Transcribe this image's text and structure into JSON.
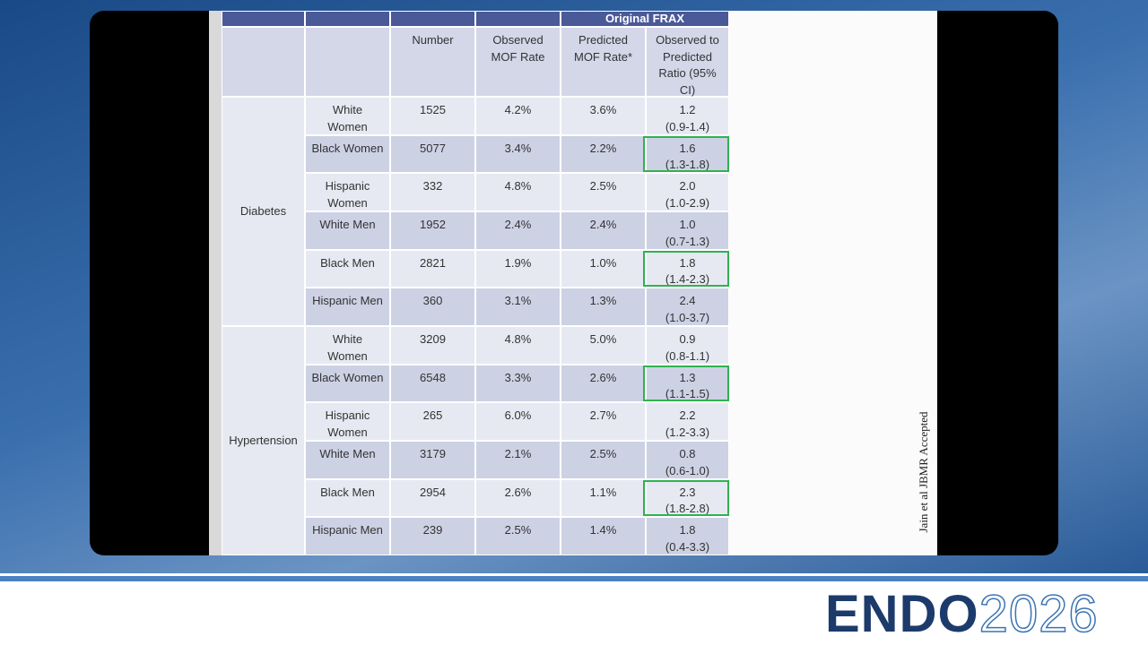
{
  "table": {
    "header_group": "Original FRAX",
    "columns": [
      "Number",
      "Observed MOF Rate",
      "Predicted MOF Rate*",
      "Observed to Predicted Ratio (95% CI)"
    ],
    "groups": [
      {
        "label": "Diabetes",
        "rows": [
          [
            "White Women",
            "1525",
            "4.2%",
            "3.6%",
            "1.2",
            "(0.9-1.4)"
          ],
          [
            "Black Women",
            "5077",
            "3.4%",
            "2.2%",
            "1.6",
            "(1.3-1.8)"
          ],
          [
            "Hispanic Women",
            "332",
            "4.8%",
            "2.5%",
            "2.0",
            "(1.0-2.9)"
          ],
          [
            "White Men",
            "1952",
            "2.4%",
            "2.4%",
            "1.0",
            "(0.7-1.3)"
          ],
          [
            "Black Men",
            "2821",
            "1.9%",
            "1.0%",
            "1.8",
            "(1.4-2.3)"
          ],
          [
            "Hispanic Men",
            "360",
            "3.1%",
            "1.3%",
            "2.4",
            "(1.0-3.7)"
          ]
        ]
      },
      {
        "label": "Hypertension",
        "rows": [
          [
            "White Women",
            "3209",
            "4.8%",
            "5.0%",
            "0.9",
            "(0.8-1.1)"
          ],
          [
            "Black Women",
            "6548",
            "3.3%",
            "2.6%",
            "1.3",
            "(1.1-1.5)"
          ],
          [
            "Hispanic Women",
            "265",
            "6.0%",
            "2.7%",
            "2.2",
            "(1.2-3.3)"
          ],
          [
            "White Men",
            "3179",
            "2.1%",
            "2.5%",
            "0.8",
            "(0.6-1.0)"
          ],
          [
            "Black Men",
            "2954",
            "2.6%",
            "1.1%",
            "2.3",
            "(1.8-2.8)"
          ],
          [
            "Hispanic Men",
            "239",
            "2.5%",
            "1.4%",
            "1.8",
            "(0.4-3.3)"
          ]
        ]
      }
    ]
  },
  "citation": "Jain et al JBMR Accepted",
  "logo": {
    "brand": "ENDO",
    "year": "2026"
  }
}
